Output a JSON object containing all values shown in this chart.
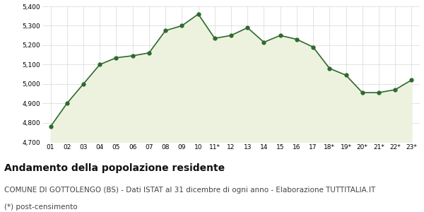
{
  "x_labels": [
    "01",
    "02",
    "03",
    "04",
    "05",
    "06",
    "07",
    "08",
    "09",
    "10",
    "11*",
    "12",
    "13",
    "14",
    "15",
    "16",
    "17",
    "18*",
    "19*",
    "20*",
    "21*",
    "22*",
    "23*"
  ],
  "values": [
    4780,
    4900,
    5000,
    5100,
    5135,
    5145,
    5160,
    5275,
    5300,
    5360,
    5235,
    5250,
    5290,
    5215,
    5250,
    5230,
    5190,
    5080,
    5045,
    4955,
    4955,
    4970,
    5020
  ],
  "line_color": "#2d6a2d",
  "fill_color": "#edf2df",
  "marker_color": "#2d6a2d",
  "background_color": "#ffffff",
  "grid_color": "#d8d8d8",
  "ylim": [
    4700,
    5400
  ],
  "yticks": [
    4700,
    4800,
    4900,
    5000,
    5100,
    5200,
    5300,
    5400
  ],
  "title1": "Andamento della popolazione residente",
  "title2": "COMUNE DI GOTTOLENGO (BS) - Dati ISTAT al 31 dicembre di ogni anno - Elaborazione TUTTITALIA.IT",
  "title3": "(*) post-censimento",
  "title1_fontsize": 10,
  "title2_fontsize": 7.5,
  "title3_fontsize": 7.5
}
